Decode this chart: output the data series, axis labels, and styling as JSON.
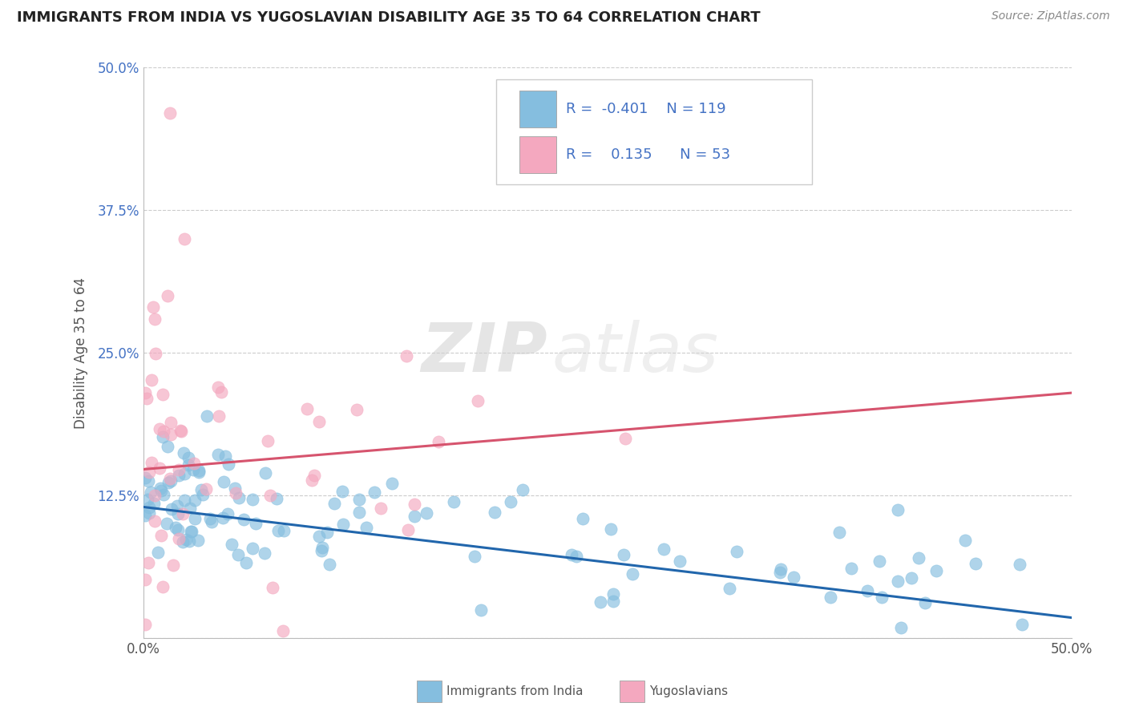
{
  "title": "IMMIGRANTS FROM INDIA VS YUGOSLAVIAN DISABILITY AGE 35 TO 64 CORRELATION CHART",
  "source": "Source: ZipAtlas.com",
  "ylabel": "Disability Age 35 to 64",
  "xlim": [
    0.0,
    0.5
  ],
  "ylim": [
    0.0,
    0.5
  ],
  "xticks": [
    0.0,
    0.1,
    0.2,
    0.3,
    0.4,
    0.5
  ],
  "yticks": [
    0.0,
    0.125,
    0.25,
    0.375,
    0.5
  ],
  "xticklabels": [
    "0.0%",
    "",
    "",
    "",
    "",
    "50.0%"
  ],
  "yticklabels": [
    "",
    "12.5%",
    "25.0%",
    "37.5%",
    "50.0%"
  ],
  "legend_labels": [
    "Immigrants from India",
    "Yugoslavians"
  ],
  "legend_r": [
    "-0.401",
    "0.135"
  ],
  "legend_n": [
    "119",
    "53"
  ],
  "blue_color": "#85bedf",
  "pink_color": "#f4a8bf",
  "blue_line_color": "#2166ac",
  "pink_line_color": "#d6546e",
  "watermark_zip": "ZIP",
  "watermark_atlas": "atlas",
  "blue_trendline_x": [
    0.0,
    0.5
  ],
  "blue_trendline_y": [
    0.115,
    0.018
  ],
  "pink_trendline_x": [
    0.0,
    0.5
  ],
  "pink_trendline_y": [
    0.148,
    0.215
  ]
}
